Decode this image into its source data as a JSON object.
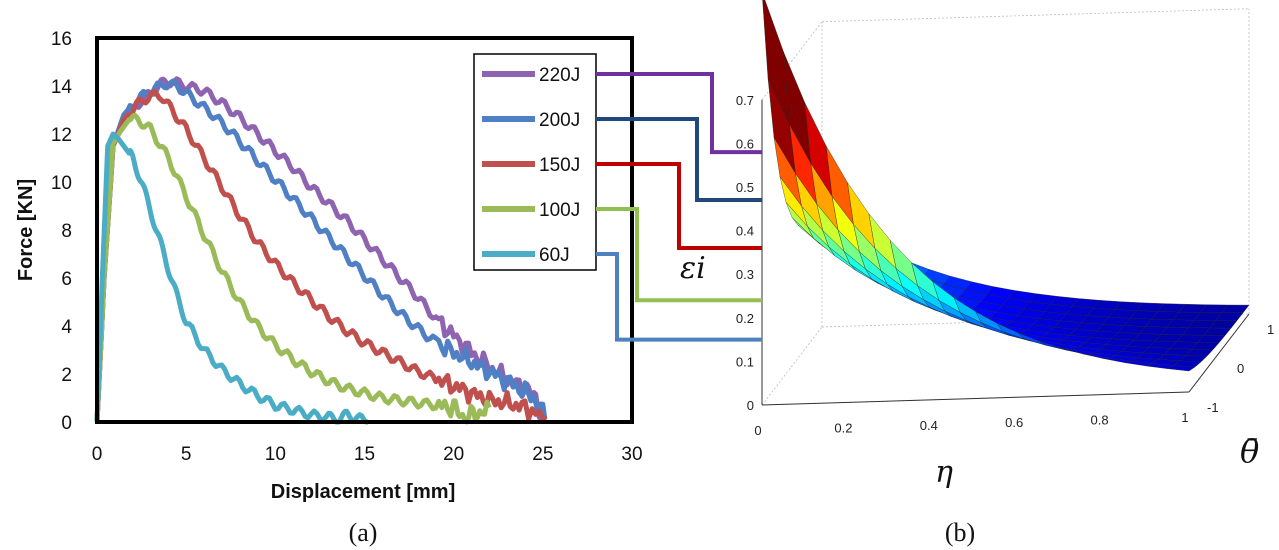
{
  "chart_data": [
    {
      "type": "line",
      "panel_label": "(a)",
      "xlabel": "Displacement [mm]",
      "ylabel": "Force [KN]",
      "xlim": [
        0,
        30
      ],
      "ylim": [
        0,
        16
      ],
      "xticks": [
        "0",
        "5",
        "10",
        "15",
        "20",
        "25",
        "30"
      ],
      "yticks": [
        "0",
        "2",
        "4",
        "6",
        "8",
        "10",
        "12",
        "14",
        "16"
      ],
      "grid": false,
      "legend_position": "top-right",
      "series": [
        {
          "name": "220J",
          "color": "#8E64B0",
          "x": [
            0,
            0.4,
            0.9,
            1.5,
            2.2,
            3,
            3.6,
            4.2,
            5,
            6,
            7,
            8,
            9,
            10,
            11,
            12,
            13,
            14,
            15,
            16,
            17,
            18,
            19,
            20,
            21,
            22,
            23,
            24,
            24.6,
            25.0
          ],
          "y": [
            0,
            6,
            11.5,
            12.5,
            13.2,
            13.7,
            14.1,
            14.2,
            14.0,
            13.8,
            13.3,
            12.7,
            12.0,
            11.3,
            10.6,
            9.8,
            9.1,
            8.4,
            7.6,
            6.8,
            6.0,
            5.2,
            4.3,
            3.6,
            2.9,
            2.3,
            1.8,
            1.4,
            1.0,
            0.2
          ]
        },
        {
          "name": "200J",
          "color": "#4F7FC4",
          "x": [
            0,
            0.4,
            0.9,
            1.5,
            2.2,
            3,
            3.8,
            4.5,
            5.5,
            6.5,
            7.5,
            8.5,
            9.5,
            10.5,
            11.5,
            12.5,
            13.5,
            14.5,
            15.5,
            16.5,
            17.5,
            18.5,
            19.5,
            20.5,
            21.5,
            22.5,
            23.5,
            24.5,
            25.1
          ],
          "y": [
            0,
            6,
            11.5,
            12.8,
            13.4,
            13.8,
            14.1,
            14.0,
            13.4,
            12.8,
            12.1,
            11.3,
            10.5,
            9.7,
            8.9,
            8.1,
            7.3,
            6.5,
            5.7,
            4.9,
            4.2,
            3.6,
            3.1,
            2.7,
            2.3,
            1.9,
            1.5,
            1.0,
            0.2
          ]
        },
        {
          "name": "150J",
          "color": "#C0504D",
          "x": [
            0,
            0.4,
            0.9,
            1.5,
            2.2,
            3,
            3.6,
            4.2,
            5,
            6,
            7,
            8,
            9,
            10,
            11,
            12,
            13,
            14,
            15,
            16,
            17,
            18,
            19,
            20,
            21,
            22,
            23,
            24,
            25.2
          ],
          "y": [
            0,
            6,
            11.5,
            12.6,
            13.2,
            13.6,
            13.6,
            13.0,
            12.2,
            11.0,
            9.8,
            8.6,
            7.5,
            6.6,
            5.8,
            5.1,
            4.4,
            3.8,
            3.3,
            2.9,
            2.5,
            2.1,
            1.8,
            1.5,
            1.2,
            0.9,
            0.8,
            0.6,
            0.1
          ]
        },
        {
          "name": "100J",
          "color": "#9BBB59",
          "x": [
            0,
            0.4,
            0.9,
            1.3,
            1.8,
            2.3,
            3,
            4,
            5,
            6,
            7,
            8,
            9,
            10,
            11,
            12,
            13,
            14,
            15,
            16,
            17,
            18,
            19,
            20,
            20.5,
            21.2,
            22
          ],
          "y": [
            0,
            6,
            11.6,
            12.1,
            12.6,
            12.6,
            12.2,
            11.0,
            9.4,
            7.8,
            6.3,
            5.0,
            4.0,
            3.2,
            2.6,
            2.1,
            1.7,
            1.4,
            1.2,
            1.0,
            0.9,
            0.8,
            0.7,
            0.6,
            0.2,
            0.3,
            0.6
          ]
        },
        {
          "name": "60J",
          "color": "#4BACC6",
          "x": [
            0,
            0.3,
            0.6,
            0.9,
            1.2,
            1.6,
            2,
            2.5,
            3,
            3.5,
            4,
            4.5,
            5,
            6,
            7,
            8,
            9,
            10,
            11,
            12,
            13,
            13.5,
            14,
            14.5,
            15.2
          ],
          "y": [
            0,
            6,
            11.5,
            12.0,
            11.8,
            11.4,
            11.0,
            10.0,
            8.8,
            7.6,
            6.4,
            5.2,
            4.2,
            3.0,
            2.2,
            1.6,
            1.1,
            0.7,
            0.5,
            0.3,
            0.2,
            0.1,
            0.3,
            0.2,
            0.0
          ]
        }
      ]
    },
    {
      "type": "surface3d",
      "panel_label": "(b)",
      "xlabel": "η",
      "ylabel": "θ̄",
      "zlabel": "εi",
      "xlim": [
        0,
        1
      ],
      "ylim": [
        -1,
        1
      ],
      "zlim": [
        0,
        0.7
      ],
      "xticks": [
        "0",
        "0.2",
        "0.4",
        "0.6",
        "0.8",
        "1"
      ],
      "yticks": [
        "-1",
        "0",
        "1"
      ],
      "zticks": [
        "0",
        "0.1",
        "0.2",
        "0.3",
        "0.4",
        "0.5",
        "0.6",
        "0.7"
      ],
      "colormap": "jet",
      "edge_values": [
        {
          "series": "220J",
          "z": 0.58
        },
        {
          "series": "200J",
          "z": 0.47
        },
        {
          "series": "150J",
          "z": 0.36
        },
        {
          "series": "100J",
          "z": 0.24
        },
        {
          "series": "60J",
          "z": 0.15
        }
      ]
    }
  ]
}
